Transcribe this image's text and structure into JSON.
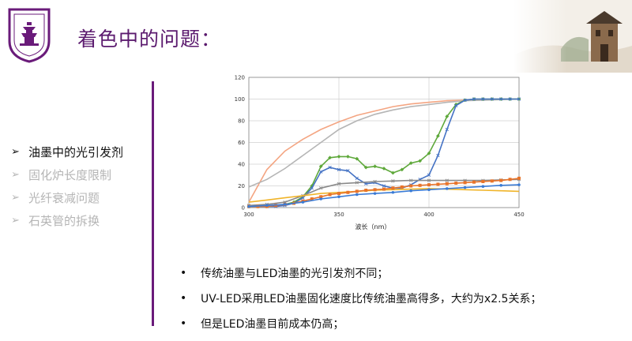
{
  "slide": {
    "title": "着色中的问题："
  },
  "nav": {
    "arrow": "➢",
    "items": [
      {
        "label": "油墨中的光引发剂",
        "active": true
      },
      {
        "label": "固化炉长度限制",
        "active": false
      },
      {
        "label": "光纤衰减问题",
        "active": false
      },
      {
        "label": "石英管的拆换",
        "active": false
      }
    ]
  },
  "bullets": {
    "marker": "•",
    "items": [
      "传统油墨与LED油墨的光引发剂不同；",
      "UV-LED采用LED油墨固化速度比传统油墨高得多，大约为x2.5关系；",
      "但是LED油墨目前成本仍高；"
    ]
  },
  "colors": {
    "accent": "#5b1a6e",
    "divider": "#6a1b7a",
    "logo": "#6a1b7a"
  },
  "chart_data": {
    "type": "line",
    "xlabel": "波长（nm）",
    "ylabel": "",
    "xlim": [
      300,
      450
    ],
    "ylim": [
      0,
      120
    ],
    "xticks": [
      300,
      350,
      400,
      450
    ],
    "yticks": [
      0,
      20,
      40,
      60,
      80,
      100,
      120
    ],
    "grid": true,
    "series": [
      {
        "color": "#f4a582",
        "marker": "none",
        "x": [
          300,
          310,
          320,
          330,
          340,
          350,
          360,
          370,
          380,
          390,
          400,
          410,
          420,
          430,
          440,
          450
        ],
        "y": [
          5,
          35,
          52,
          63,
          72,
          79,
          85,
          89,
          93,
          95.5,
          97,
          98.5,
          99,
          99.5,
          100,
          100
        ]
      },
      {
        "color": "#b5b5b5",
        "marker": "none",
        "x": [
          300,
          310,
          320,
          330,
          340,
          350,
          360,
          370,
          380,
          390,
          400,
          410,
          420,
          430,
          440,
          450
        ],
        "y": [
          19,
          26,
          36,
          48,
          60,
          72,
          80,
          86,
          90,
          93,
          95,
          97,
          98.5,
          99,
          99.5,
          100
        ]
      },
      {
        "color": "#5ea83a",
        "marker": "diamond",
        "x": [
          300,
          305,
          310,
          315,
          320,
          325,
          330,
          335,
          340,
          345,
          350,
          355,
          360,
          365,
          370,
          375,
          380,
          385,
          390,
          395,
          400,
          405,
          410,
          415,
          420,
          425,
          430,
          435,
          440,
          445,
          450
        ],
        "y": [
          1,
          1,
          1,
          2,
          3,
          5,
          10,
          20,
          38,
          46,
          47,
          47,
          45,
          37,
          38,
          36,
          32,
          35,
          41,
          43,
          50,
          66,
          84,
          95,
          99,
          100,
          100,
          100,
          100,
          100,
          100
        ]
      },
      {
        "color": "#4472c4",
        "marker": "cross",
        "x": [
          300,
          305,
          310,
          315,
          320,
          325,
          330,
          335,
          340,
          345,
          350,
          355,
          360,
          365,
          370,
          375,
          380,
          385,
          390,
          395,
          400,
          405,
          410,
          415,
          420,
          425,
          430,
          435,
          440,
          445,
          450
        ],
        "y": [
          1,
          1,
          1,
          1,
          2,
          4,
          9,
          18,
          33,
          37,
          35,
          34,
          27,
          22,
          23,
          20,
          18,
          18,
          21,
          26,
          30,
          48,
          72,
          94,
          99,
          100,
          100,
          100,
          100,
          100,
          100
        ]
      },
      {
        "color": "#8a8a8a",
        "marker": "cross",
        "x": [
          300,
          310,
          320,
          330,
          340,
          350,
          360,
          370,
          380,
          390,
          400,
          410,
          420,
          430,
          440,
          450
        ],
        "y": [
          2,
          3,
          5,
          11,
          18,
          22,
          23,
          24,
          24.5,
          25,
          25,
          25,
          25,
          25,
          25.5,
          26
        ]
      },
      {
        "color": "#f0b429",
        "marker": "none",
        "x": [
          300,
          310,
          320,
          330,
          340,
          350,
          360,
          370,
          380,
          390,
          400,
          410,
          420,
          430,
          440,
          450
        ],
        "y": [
          5,
          7,
          9,
          11,
          13,
          14,
          15,
          16,
          16.5,
          17,
          17.5,
          17,
          16.5,
          16,
          15.5,
          15
        ]
      },
      {
        "color": "#e8742a",
        "marker": "square",
        "x": [
          300,
          305,
          310,
          315,
          320,
          325,
          330,
          335,
          340,
          345,
          350,
          355,
          360,
          365,
          370,
          375,
          380,
          385,
          390,
          395,
          400,
          405,
          410,
          415,
          420,
          425,
          430,
          435,
          440,
          445,
          450
        ],
        "y": [
          1,
          1,
          1,
          2,
          3,
          4,
          6,
          8,
          10,
          12,
          13,
          14,
          15,
          16,
          16.5,
          17,
          18,
          19,
          20,
          20.5,
          21,
          21.5,
          22,
          22.5,
          23,
          23.5,
          24,
          24.5,
          25,
          26,
          27
        ]
      },
      {
        "color": "#3a7bd5",
        "marker": "circle",
        "x": [
          300,
          310,
          320,
          330,
          340,
          350,
          360,
          370,
          380,
          390,
          400,
          410,
          420,
          430,
          440,
          450
        ],
        "y": [
          1,
          2,
          3,
          5,
          8,
          10,
          12,
          13,
          14,
          15.5,
          16.5,
          17.5,
          18.5,
          19.5,
          20.5,
          21
        ]
      }
    ]
  }
}
